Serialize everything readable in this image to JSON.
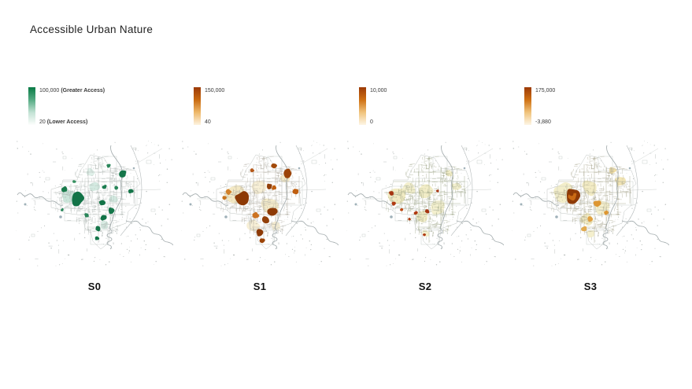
{
  "title": "Accessible Urban Nature",
  "base_map_colors": {
    "river": "#9fa8aa",
    "boundary": "#c0c5c3",
    "speckle": "#b7bcba",
    "water_dot": "#8fa3ad",
    "highway": "#b2b8b9"
  },
  "panels": [
    {
      "label": "S0",
      "legend": {
        "max_value": "100,000",
        "max_note": "(Greater Access)",
        "min_value": "20",
        "min_note": "(Lower Access)"
      },
      "gradient": [
        "#087a45",
        "#55ab83",
        "#c2e2d4",
        "#fdfefd"
      ],
      "street_color": "#a7b0ac",
      "patches_under": [
        [
          66,
          70,
          9,
          "#9fcdb9",
          0.55
        ],
        [
          100,
          58,
          7,
          "#a8d4c2",
          0.5
        ],
        [
          124,
          74,
          6,
          "#a8d4c2",
          0.5
        ],
        [
          95,
          40,
          5,
          "#b8dccd",
          0.45
        ],
        [
          112,
          108,
          6,
          "#a8d4c2",
          0.45
        ]
      ],
      "patches": [
        [
          78,
          74,
          9,
          "#127347"
        ],
        [
          62,
          62,
          4,
          "#187a4b"
        ],
        [
          136,
          42,
          5,
          "#15764a"
        ],
        [
          118,
          32,
          3,
          "#2a865a"
        ],
        [
          146,
          64,
          3.5,
          "#15764a"
        ],
        [
          113,
          59,
          3,
          "#1c7d50"
        ],
        [
          110,
          79,
          4,
          "#147448"
        ],
        [
          121,
          89,
          4,
          "#15764a"
        ],
        [
          112,
          98,
          4,
          "#127347"
        ],
        [
          104,
          112,
          3.5,
          "#147448"
        ],
        [
          103,
          124,
          3,
          "#15764a"
        ],
        [
          90,
          95,
          3,
          "#2a865a"
        ],
        [
          59,
          88,
          2,
          "#2a865a"
        ],
        [
          74,
          52,
          2.5,
          "#35905f"
        ],
        [
          128,
          60,
          2.5,
          "#2a865a"
        ]
      ]
    },
    {
      "label": "S1",
      "legend": {
        "max_value": "150,000",
        "max_note": "",
        "min_value": "40",
        "min_note": ""
      },
      "gradient": [
        "#9c3a06",
        "#c96a10",
        "#eeb86a",
        "#fdf3e0"
      ],
      "street_color": "#aba69b",
      "patches_under": [
        [
          70,
          70,
          13,
          "#f0e2b4",
          0.8
        ],
        [
          100,
          60,
          10,
          "#f4e8c4",
          0.7
        ],
        [
          112,
          82,
          11,
          "#f0e2b4",
          0.7
        ],
        [
          92,
          108,
          8,
          "#f4e8c4",
          0.7
        ],
        [
          132,
          48,
          7,
          "#f0e2b4",
          0.7
        ],
        [
          120,
          108,
          6,
          "#f2e5bc",
          0.65
        ]
      ],
      "patches": [
        [
          60,
          65,
          4,
          "#d2812a"
        ],
        [
          55,
          73,
          3,
          "#c87620"
        ],
        [
          146,
          65,
          4,
          "#c05f10"
        ],
        [
          95,
          95,
          4,
          "#cc7322"
        ],
        [
          118,
          60,
          3,
          "#c05f10"
        ],
        [
          90,
          38,
          3,
          "#b5581a"
        ],
        [
          78,
          74,
          10,
          "#8d3a06"
        ],
        [
          136,
          42,
          6,
          "#9c4408"
        ],
        [
          118,
          32,
          4,
          "#a24a0a"
        ],
        [
          112,
          58,
          4,
          "#93400a"
        ],
        [
          116,
          90,
          6,
          "#8d3a06"
        ],
        [
          108,
          101,
          5,
          "#93400a"
        ],
        [
          100,
          117,
          5,
          "#8d3a06"
        ],
        [
          103,
          127,
          3.5,
          "#9c4408"
        ]
      ]
    },
    {
      "label": "S2",
      "legend": {
        "max_value": "10,000",
        "max_note": "",
        "min_value": "0",
        "min_note": ""
      },
      "gradient": [
        "#9c3a06",
        "#cf7013",
        "#f0c37c",
        "#fdf6e6"
      ],
      "street_color": "#99a183",
      "patches_under": [
        [
          64,
          70,
          12,
          "#efe9bc",
          0.9
        ],
        [
          80,
          60,
          9,
          "#f1ecc6",
          0.9
        ],
        [
          102,
          64,
          10,
          "#efe9bc",
          0.85
        ],
        [
          116,
          85,
          10,
          "#f1ecc6",
          0.85
        ],
        [
          96,
          96,
          8,
          "#efe9bc",
          0.85
        ],
        [
          140,
          58,
          6,
          "#f1ecc6",
          0.85
        ],
        [
          130,
          42,
          5,
          "#efe9bc",
          0.85
        ],
        [
          100,
          118,
          5,
          "#f1ecc6",
          0.85
        ]
      ],
      "patches": [
        [
          57,
          67,
          3,
          "#a63410"
        ],
        [
          60,
          80,
          2.5,
          "#b03a12"
        ],
        [
          103,
          90,
          3,
          "#a63410"
        ],
        [
          88,
          92,
          2.5,
          "#b03a12"
        ],
        [
          116,
          64,
          2,
          "#a63410"
        ],
        [
          99,
          120,
          2,
          "#b03a12"
        ],
        [
          70,
          88,
          2,
          "#c04a14"
        ],
        [
          80,
          100,
          2,
          "#b03a12"
        ]
      ]
    },
    {
      "label": "S3",
      "legend": {
        "max_value": "175,000",
        "max_note": "",
        "min_value": "-3,880",
        "min_note": ""
      },
      "gradient": [
        "#9c3a06",
        "#cf7013",
        "#f0c37c",
        "#fdf6e6"
      ],
      "street_color": "#a29f87",
      "patches_under": [
        [
          66,
          66,
          12,
          "#f2ecc4",
          0.9
        ],
        [
          100,
          60,
          10,
          "#f0e8ba",
          0.85
        ],
        [
          116,
          85,
          10,
          "#f2ecc4",
          0.85
        ],
        [
          95,
          100,
          8,
          "#f0e8ba",
          0.85
        ],
        [
          138,
          52,
          7,
          "#f0e0a8",
          0.85
        ],
        [
          128,
          38,
          5,
          "#eed99a",
          0.9
        ],
        [
          100,
          118,
          5,
          "#f2ecc4",
          0.85
        ]
      ],
      "patches": [
        [
          108,
          80,
          5,
          "#dd9632"
        ],
        [
          100,
          100,
          4,
          "#e0a040"
        ],
        [
          92,
          112,
          3.5,
          "#e2aa4e"
        ],
        [
          120,
          92,
          3,
          "#dd9632"
        ],
        [
          77,
          70,
          9.5,
          "#8d3a06"
        ],
        [
          77,
          71,
          6,
          "#c96a14"
        ],
        [
          76,
          68,
          3,
          "#8d3a06"
        ]
      ]
    }
  ]
}
